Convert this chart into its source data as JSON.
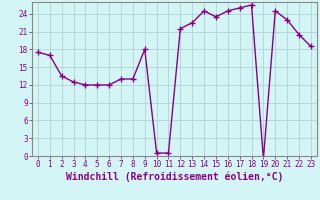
{
  "x": [
    0,
    1,
    2,
    3,
    4,
    5,
    6,
    7,
    8,
    9,
    10,
    11,
    12,
    13,
    14,
    15,
    16,
    17,
    18,
    19,
    20,
    21,
    22,
    23
  ],
  "y": [
    17.5,
    17.0,
    13.5,
    12.5,
    12.0,
    12.0,
    12.0,
    13.0,
    13.0,
    18.0,
    0.5,
    0.5,
    21.5,
    22.5,
    24.5,
    23.5,
    24.5,
    25.0,
    25.5,
    -0.5,
    24.5,
    23.0,
    20.5,
    18.5
  ],
  "line_color": "#880088",
  "marker": "+",
  "markersize": 4,
  "linewidth": 1.0,
  "markeredgewidth": 1.0,
  "bg_color": "#d4f5f5",
  "grid_color": "#aacccc",
  "xlabel": "Windchill (Refroidissement éolien,°C)",
  "xlim": [
    -0.5,
    23.5
  ],
  "ylim": [
    0,
    26
  ],
  "yticks": [
    0,
    3,
    6,
    9,
    12,
    15,
    18,
    21,
    24
  ],
  "xticks": [
    0,
    1,
    2,
    3,
    4,
    5,
    6,
    7,
    8,
    9,
    10,
    11,
    12,
    13,
    14,
    15,
    16,
    17,
    18,
    19,
    20,
    21,
    22,
    23
  ],
  "tick_color": "#880088",
  "tick_fontsize": 5.5,
  "xlabel_fontsize": 7.0,
  "spine_color": "#888888"
}
